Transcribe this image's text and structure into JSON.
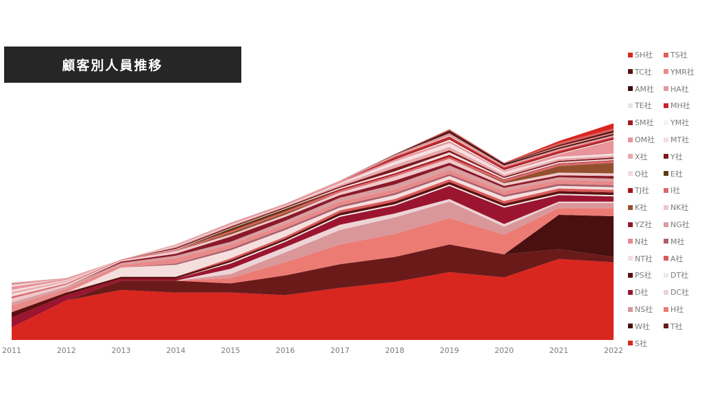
{
  "chart_data": {
    "type": "area",
    "stacked": true,
    "title": "顧客別人員推移",
    "xlabel": "",
    "ylabel": "",
    "x": [
      "2011",
      "2012",
      "2013",
      "2014",
      "2015",
      "2016",
      "2017",
      "2018",
      "2019",
      "2020",
      "2021",
      "2022"
    ],
    "ylim": [
      0,
      350
    ],
    "grid": false,
    "legend_position": "right",
    "series": [
      {
        "name": "S社",
        "color": "#d9261f",
        "values": [
          19,
          60,
          76,
          72,
          72,
          68,
          79,
          88,
          103,
          95,
          123,
          118
        ]
      },
      {
        "name": "T社",
        "color": "#6b1a1a",
        "values": [
          0,
          0,
          14,
          18,
          14,
          30,
          36,
          38,
          42,
          35,
          15,
          8
        ]
      },
      {
        "name": "W社",
        "color": "#4a1010",
        "values": [
          0,
          0,
          0,
          0,
          0,
          0,
          0,
          0,
          0,
          0,
          52,
          62
        ]
      },
      {
        "name": "H社",
        "color": "#ec7b74",
        "values": [
          0,
          0,
          0,
          0,
          8,
          20,
          30,
          35,
          40,
          30,
          10,
          12
        ]
      },
      {
        "name": "NS社",
        "color": "#d9979a",
        "values": [
          0,
          0,
          0,
          0,
          6,
          15,
          22,
          25,
          25,
          12,
          8,
          8
        ]
      },
      {
        "name": "DC社",
        "color": "#ecd3d5",
        "values": [
          0,
          0,
          0,
          0,
          8,
          8,
          8,
          6,
          4,
          4,
          2,
          2
        ]
      },
      {
        "name": "D社",
        "color": "#9b1530",
        "values": [
          15,
          8,
          3,
          3,
          8,
          8,
          12,
          12,
          20,
          25,
          10,
          8
        ]
      },
      {
        "name": "DT社",
        "color": "#eeeaea",
        "values": [
          0,
          0,
          0,
          0,
          2,
          2,
          2,
          2,
          2,
          2,
          2,
          2
        ]
      },
      {
        "name": "PS社",
        "color": "#5e1010",
        "values": [
          8,
          4,
          3,
          3,
          3,
          3,
          4,
          4,
          4,
          4,
          4,
          4
        ]
      },
      {
        "name": "A社",
        "color": "#d95a5a",
        "values": [
          0,
          0,
          0,
          0,
          3,
          3,
          4,
          4,
          4,
          4,
          4,
          4
        ]
      },
      {
        "name": "NT社",
        "color": "#f5dede",
        "values": [
          0,
          0,
          14,
          18,
          12,
          10,
          4,
          6,
          5,
          6,
          4,
          4
        ]
      },
      {
        "name": "M社",
        "color": "#a8606a",
        "values": [
          0,
          0,
          0,
          2,
          3,
          3,
          3,
          3,
          3,
          3,
          3,
          3
        ]
      },
      {
        "name": "N社",
        "color": "#e8898a",
        "values": [
          10,
          6,
          4,
          8,
          6,
          6,
          6,
          6,
          6,
          6,
          6,
          6
        ]
      },
      {
        "name": "NG社",
        "color": "#d99ea0",
        "values": [
          5,
          3,
          3,
          4,
          4,
          5,
          6,
          7,
          7,
          5,
          4,
          4
        ]
      },
      {
        "name": "YZ社",
        "color": "#8a1a2a",
        "values": [
          0,
          0,
          2,
          3,
          8,
          6,
          4,
          6,
          4,
          3,
          3,
          4
        ]
      },
      {
        "name": "NK社",
        "color": "#f0c8cb",
        "values": [
          6,
          3,
          2,
          4,
          3,
          3,
          4,
          6,
          6,
          4,
          4,
          4
        ]
      },
      {
        "name": "K社",
        "color": "#94502e",
        "values": [
          0,
          0,
          0,
          0,
          3,
          3,
          0,
          0,
          0,
          2,
          10,
          16
        ]
      },
      {
        "name": "I社",
        "color": "#d86a6e",
        "values": [
          3,
          2,
          1,
          2,
          2,
          2,
          3,
          3,
          3,
          3,
          3,
          3
        ]
      },
      {
        "name": "TJ社",
        "color": "#a5161b",
        "values": [
          0,
          0,
          0,
          0,
          1,
          1,
          2,
          2,
          3,
          1,
          1,
          1
        ]
      },
      {
        "name": "E社",
        "color": "#5c3a10",
        "values": [
          0,
          0,
          0,
          0,
          3,
          3,
          0,
          0,
          0,
          0,
          0,
          0
        ]
      },
      {
        "name": "O社",
        "color": "#f3dadc",
        "values": [
          4,
          2,
          0,
          1,
          1,
          1,
          2,
          3,
          4,
          2,
          2,
          2
        ]
      },
      {
        "name": "Y社",
        "color": "#7a1a1f",
        "values": [
          0,
          0,
          0,
          2,
          2,
          2,
          2,
          5,
          3,
          2,
          2,
          2
        ]
      },
      {
        "name": "X社",
        "color": "#e8a8aa",
        "values": [
          3,
          2,
          0,
          2,
          2,
          1,
          3,
          5,
          5,
          3,
          3,
          3
        ]
      },
      {
        "name": "MT社",
        "color": "#f4dfe1",
        "values": [
          3,
          1,
          0,
          1,
          1,
          1,
          2,
          5,
          6,
          4,
          3,
          3
        ]
      },
      {
        "name": "OM社",
        "color": "#e8949a",
        "values": [
          5,
          2,
          0,
          1,
          1,
          1,
          2,
          3,
          3,
          2,
          4,
          20
        ]
      },
      {
        "name": "YM社",
        "color": "#f3f3f1",
        "values": [
          2,
          0,
          0,
          0,
          0,
          0,
          0,
          0,
          2,
          1,
          1,
          1
        ]
      },
      {
        "name": "SM社",
        "color": "#9e1c22",
        "values": [
          0,
          0,
          0,
          0,
          0,
          0,
          0,
          2,
          2,
          2,
          2,
          2
        ]
      },
      {
        "name": "MH社",
        "color": "#c8262a",
        "values": [
          0,
          0,
          0,
          0,
          0,
          0,
          0,
          2,
          3,
          2,
          2,
          2
        ]
      },
      {
        "name": "TE社",
        "color": "#e6e6e4",
        "values": [
          0,
          0,
          0,
          0,
          0,
          0,
          0,
          0,
          1,
          0,
          0,
          0
        ]
      },
      {
        "name": "HA社",
        "color": "#e0999c",
        "values": [
          4,
          1,
          0,
          1,
          2,
          2,
          2,
          3,
          4,
          3,
          3,
          3
        ]
      },
      {
        "name": "AM社",
        "color": "#3d0c0c",
        "values": [
          0,
          0,
          0,
          0,
          0,
          0,
          0,
          0,
          2,
          2,
          2,
          2
        ]
      },
      {
        "name": "YMR社",
        "color": "#e88a86",
        "values": [
          0,
          0,
          0,
          0,
          0,
          0,
          0,
          0,
          0,
          0,
          2,
          2
        ]
      },
      {
        "name": "TC社",
        "color": "#5a1414",
        "values": [
          0,
          0,
          0,
          0,
          0,
          0,
          0,
          1,
          2,
          1,
          2,
          3
        ]
      },
      {
        "name": "TS社",
        "color": "#d9605e",
        "values": [
          0,
          0,
          0,
          0,
          0,
          0,
          0,
          0,
          2,
          1,
          3,
          3
        ]
      },
      {
        "name": "SH社",
        "color": "#d9261f",
        "values": [
          0,
          0,
          0,
          0,
          0,
          0,
          0,
          0,
          0,
          0,
          3,
          8
        ]
      }
    ]
  }
}
